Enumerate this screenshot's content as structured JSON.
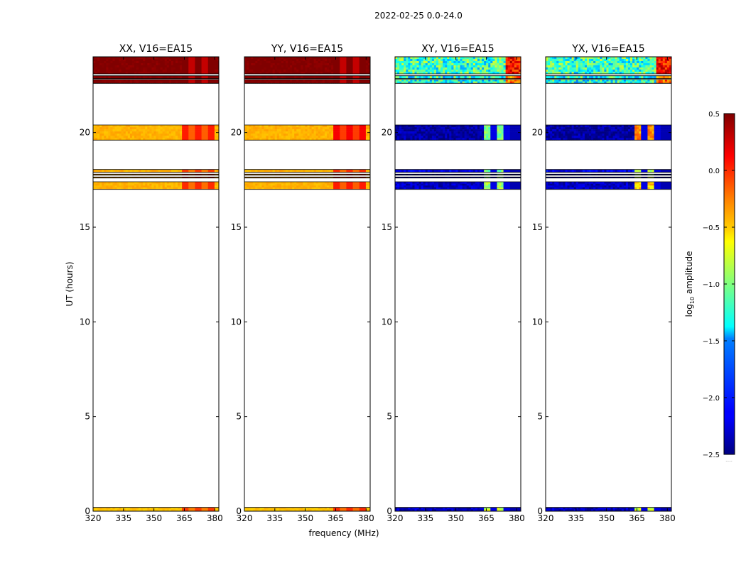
{
  "suptitle": "2022-02-25 0.0-24.0",
  "xlabel": "frequency (MHz)",
  "ylabel": "UT (hours)",
  "colorbar": {
    "label_prefix": "log",
    "label_sub": "10",
    "label_suffix": " amplitude",
    "range": [
      -2.5,
      0.5
    ],
    "ticks": [
      "0.5",
      "0.0",
      "−0.5",
      "−1.0",
      "−1.5",
      "−2.0",
      "−2.5"
    ],
    "tick_values": [
      0.5,
      0.0,
      -0.5,
      -1.0,
      -1.5,
      -2.0,
      -2.5
    ],
    "extra_label": "....."
  },
  "chart_data": [
    {
      "type": "heatmap",
      "title": "XX, V16=EA15",
      "xlim": [
        320,
        382
      ],
      "ylim": [
        0,
        24
      ],
      "xticks": [
        "320",
        "335",
        "350",
        "365",
        "380"
      ],
      "xtick_values": [
        320,
        335,
        350,
        365,
        380
      ],
      "yticks": [
        "0",
        "5",
        "10",
        "15",
        "20"
      ],
      "ytick_values": [
        0,
        5,
        10,
        15,
        20
      ],
      "scheme": "parallel",
      "rows": [
        {
          "t0": 0.0,
          "t1": 0.2,
          "base": -0.45,
          "hi": -0.05
        },
        {
          "t0": 17.0,
          "t1": 17.4,
          "base": -0.4,
          "hi": 0.0
        },
        {
          "t0": 17.6,
          "t1": 17.65,
          "base": -0.35,
          "hi": 0.05
        },
        {
          "t0": 17.75,
          "t1": 17.8,
          "base": -0.35,
          "hi": 0.05
        },
        {
          "t0": 17.9,
          "t1": 18.05,
          "base": -0.4,
          "hi": -0.05
        },
        {
          "t0": 19.6,
          "t1": 20.4,
          "base": -0.4,
          "hi": 0.05
        },
        {
          "t0": 22.6,
          "t1": 22.8,
          "base": 0.5,
          "hi": 0.5
        },
        {
          "t0": 22.85,
          "t1": 23.0,
          "base": 0.5,
          "hi": 0.5
        },
        {
          "t0": 23.1,
          "t1": 24.0,
          "base": 0.5,
          "hi": 0.5
        }
      ]
    },
    {
      "type": "heatmap",
      "title": "YY, V16=EA15",
      "xlim": [
        320,
        382
      ],
      "ylim": [
        0,
        24
      ],
      "xticks": [
        "320",
        "335",
        "350",
        "365",
        "380"
      ],
      "xtick_values": [
        320,
        335,
        350,
        365,
        380
      ],
      "yticks": [
        "0",
        "5",
        "10",
        "15",
        "20"
      ],
      "ytick_values": [
        0,
        5,
        10,
        15,
        20
      ],
      "scheme": "parallel",
      "rows": [
        {
          "t0": 0.0,
          "t1": 0.2,
          "base": -0.45,
          "hi": 0.0
        },
        {
          "t0": 17.0,
          "t1": 17.4,
          "base": -0.4,
          "hi": 0.05
        },
        {
          "t0": 17.6,
          "t1": 17.65,
          "base": -0.35,
          "hi": 0.05
        },
        {
          "t0": 17.75,
          "t1": 17.8,
          "base": -0.35,
          "hi": 0.05
        },
        {
          "t0": 17.9,
          "t1": 18.05,
          "base": -0.4,
          "hi": 0.0
        },
        {
          "t0": 19.6,
          "t1": 20.4,
          "base": -0.4,
          "hi": 0.15
        },
        {
          "t0": 22.6,
          "t1": 22.8,
          "base": 0.5,
          "hi": 0.5
        },
        {
          "t0": 22.85,
          "t1": 23.0,
          "base": 0.5,
          "hi": 0.5
        },
        {
          "t0": 23.1,
          "t1": 24.0,
          "base": 0.5,
          "hi": 0.5
        }
      ]
    },
    {
      "type": "heatmap",
      "title": "XY, V16=EA15",
      "xlim": [
        320,
        382
      ],
      "ylim": [
        0,
        24
      ],
      "xticks": [
        "320",
        "335",
        "350",
        "365",
        "380"
      ],
      "xtick_values": [
        320,
        335,
        350,
        365,
        380
      ],
      "yticks": [
        "0",
        "5",
        "10",
        "15",
        "20"
      ],
      "ytick_values": [
        0,
        5,
        10,
        15,
        20
      ],
      "scheme": "cross",
      "rows": [
        {
          "t0": 0.0,
          "t1": 0.2,
          "base": -2.3,
          "hi": -0.8
        },
        {
          "t0": 17.0,
          "t1": 17.4,
          "base": -2.3,
          "hi": -0.9
        },
        {
          "t0": 17.6,
          "t1": 17.65,
          "base": -2.2,
          "hi": -1.0
        },
        {
          "t0": 17.75,
          "t1": 17.8,
          "base": -2.2,
          "hi": -1.0
        },
        {
          "t0": 17.9,
          "t1": 18.05,
          "base": -2.2,
          "hi": -1.0
        },
        {
          "t0": 19.6,
          "t1": 20.4,
          "base": -2.4,
          "hi": -1.0
        },
        {
          "t0": 22.6,
          "t1": 22.8,
          "base": -1.3,
          "hi": -0.2
        },
        {
          "t0": 22.85,
          "t1": 23.0,
          "base": -1.3,
          "hi": -0.2
        },
        {
          "t0": 23.1,
          "t1": 24.0,
          "base": -1.2,
          "hi": 0.1
        }
      ]
    },
    {
      "type": "heatmap",
      "title": "YX, V16=EA15",
      "xlim": [
        320,
        382
      ],
      "ylim": [
        0,
        24
      ],
      "xticks": [
        "320",
        "335",
        "350",
        "365",
        "380"
      ],
      "xtick_values": [
        320,
        335,
        350,
        365,
        380
      ],
      "yticks": [
        "0",
        "5",
        "10",
        "15",
        "20"
      ],
      "ytick_values": [
        0,
        5,
        10,
        15,
        20
      ],
      "scheme": "cross",
      "rows": [
        {
          "t0": 0.0,
          "t1": 0.2,
          "base": -2.3,
          "hi": -0.8
        },
        {
          "t0": 17.0,
          "t1": 17.4,
          "base": -2.3,
          "hi": -0.5
        },
        {
          "t0": 17.6,
          "t1": 17.65,
          "base": -2.2,
          "hi": -0.9
        },
        {
          "t0": 17.75,
          "t1": 17.8,
          "base": -2.2,
          "hi": -0.9
        },
        {
          "t0": 17.9,
          "t1": 18.05,
          "base": -2.2,
          "hi": -0.9
        },
        {
          "t0": 19.6,
          "t1": 20.4,
          "base": -2.4,
          "hi": -0.3
        },
        {
          "t0": 22.6,
          "t1": 22.8,
          "base": -1.3,
          "hi": -0.2
        },
        {
          "t0": 22.85,
          "t1": 23.0,
          "base": -1.3,
          "hi": -0.2
        },
        {
          "t0": 23.1,
          "t1": 24.0,
          "base": -1.2,
          "hi": 0.1
        }
      ]
    }
  ]
}
